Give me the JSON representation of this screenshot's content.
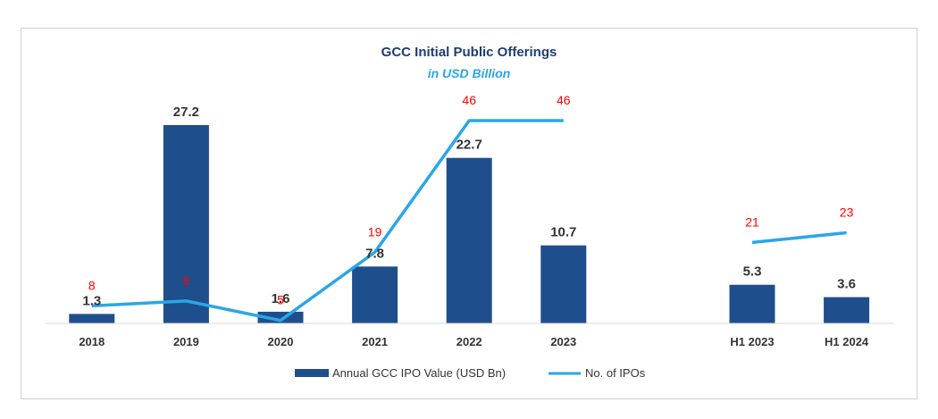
{
  "chart_data": {
    "type": "bar",
    "title": "GCC Initial Public Offerings",
    "subtitle": "in USD Billion",
    "categories": [
      "2018",
      "2019",
      "2020",
      "2021",
      "2022",
      "2023",
      "",
      "H1 2023",
      "H1 2024"
    ],
    "series": [
      {
        "name": "Annual GCC IPO Value (USD Bn)",
        "type": "bar",
        "values": [
          1.3,
          27.2,
          1.6,
          7.8,
          22.7,
          10.7,
          null,
          5.3,
          3.6
        ],
        "labels": [
          "1.3",
          "27.2",
          "1.6",
          "7.8",
          "22.7",
          "10.7",
          null,
          "5.3",
          "3.6"
        ],
        "color": "#1f4e8c"
      },
      {
        "name": "No. of IPOs",
        "type": "line",
        "values": [
          8,
          9,
          5,
          19,
          46,
          46,
          null,
          21,
          23
        ],
        "labels": [
          "8",
          "9",
          "5",
          "19",
          "46",
          "46",
          null,
          "21",
          "23"
        ],
        "color": "#2ba6e8",
        "label_color": "#ff0000"
      }
    ],
    "bar_ylim": [
      0,
      27.2
    ],
    "line_ylim": [
      0,
      46
    ],
    "grid": false,
    "legend_position": "bottom"
  }
}
